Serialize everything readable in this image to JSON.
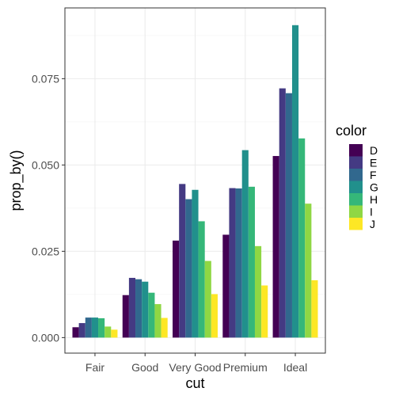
{
  "chart_data": {
    "type": "bar",
    "xlabel": "cut",
    "ylabel": "prop_by()",
    "categories": [
      "Fair",
      "Good",
      "Very Good",
      "Premium",
      "Ideal"
    ],
    "ylim": [
      -0.0045,
      0.0955
    ],
    "yticks": [
      0.0,
      0.025,
      0.05,
      0.075
    ],
    "ytick_labels": [
      "0.000",
      "0.025",
      "0.050",
      "0.075"
    ],
    "grid": true,
    "legend": {
      "title": "color",
      "position": "right"
    },
    "series": [
      {
        "name": "D",
        "color": "#440154",
        "values": [
          0.003,
          0.0123,
          0.0281,
          0.0298,
          0.0526
        ]
      },
      {
        "name": "E",
        "color": "#443A83",
        "values": [
          0.0042,
          0.0173,
          0.0445,
          0.0433,
          0.0722
        ]
      },
      {
        "name": "F",
        "color": "#31688E",
        "values": [
          0.0058,
          0.0169,
          0.0401,
          0.0432,
          0.0708
        ]
      },
      {
        "name": "G",
        "color": "#21908C",
        "values": [
          0.0058,
          0.0162,
          0.0428,
          0.0543,
          0.0905
        ]
      },
      {
        "name": "H",
        "color": "#35B779",
        "values": [
          0.0056,
          0.013,
          0.0337,
          0.0437,
          0.0577
        ]
      },
      {
        "name": "I",
        "color": "#8FD744",
        "values": [
          0.0032,
          0.0097,
          0.0222,
          0.0265,
          0.0388
        ]
      },
      {
        "name": "J",
        "color": "#FDE725",
        "values": [
          0.0023,
          0.0057,
          0.0126,
          0.0151,
          0.0166
        ]
      }
    ]
  }
}
